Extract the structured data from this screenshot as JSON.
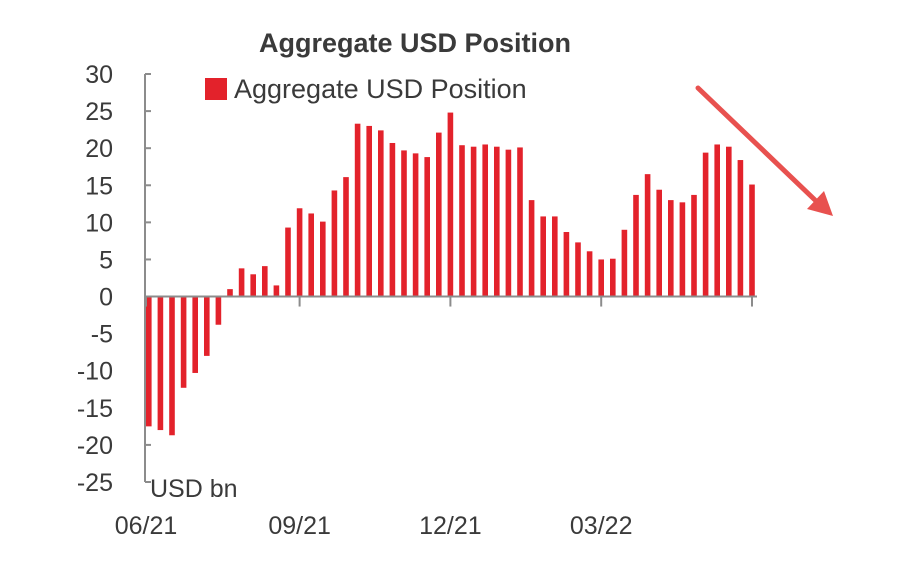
{
  "colors": {
    "bar": "#e3222b",
    "axis": "#8c8c8c",
    "arrow": "#e8514f",
    "text": "#3a3a3a"
  },
  "chart_data": {
    "type": "bar",
    "title": "Aggregate USD Position",
    "unit_label": "USD bn",
    "legend": {
      "label": "Aggregate USD Position",
      "position": "top"
    },
    "ylim": [
      -25,
      30
    ],
    "yticks": [
      "30",
      "25",
      "20",
      "15",
      "10",
      "5",
      "0",
      "-5",
      "-10",
      "-15",
      "-20",
      "-25"
    ],
    "xticks": [
      "06/21",
      "09/21",
      "12/21",
      "03/22"
    ],
    "grid": false,
    "series": [
      {
        "values": [
          -17.5,
          -18,
          -18.7,
          -12.3,
          -10.3,
          -8,
          -3.8,
          1,
          3.8,
          3,
          4.1,
          1.5,
          9.3,
          11.9,
          11.2,
          10.1,
          14.3,
          16.1,
          23.3,
          23,
          22.4,
          20.7,
          19.7,
          19.3,
          18.8,
          22.1,
          24.8,
          20.4,
          20.2,
          20.5,
          20.2,
          19.8,
          20.1,
          13,
          10.8,
          10.8,
          8.7,
          7.3,
          6.1,
          5,
          5.1,
          9,
          13.7,
          16.5,
          14.4,
          13,
          12.7,
          13.7,
          19.4,
          20.5,
          20.2,
          18.4,
          15.1
        ]
      }
    ],
    "annotation": "downward arrow"
  }
}
